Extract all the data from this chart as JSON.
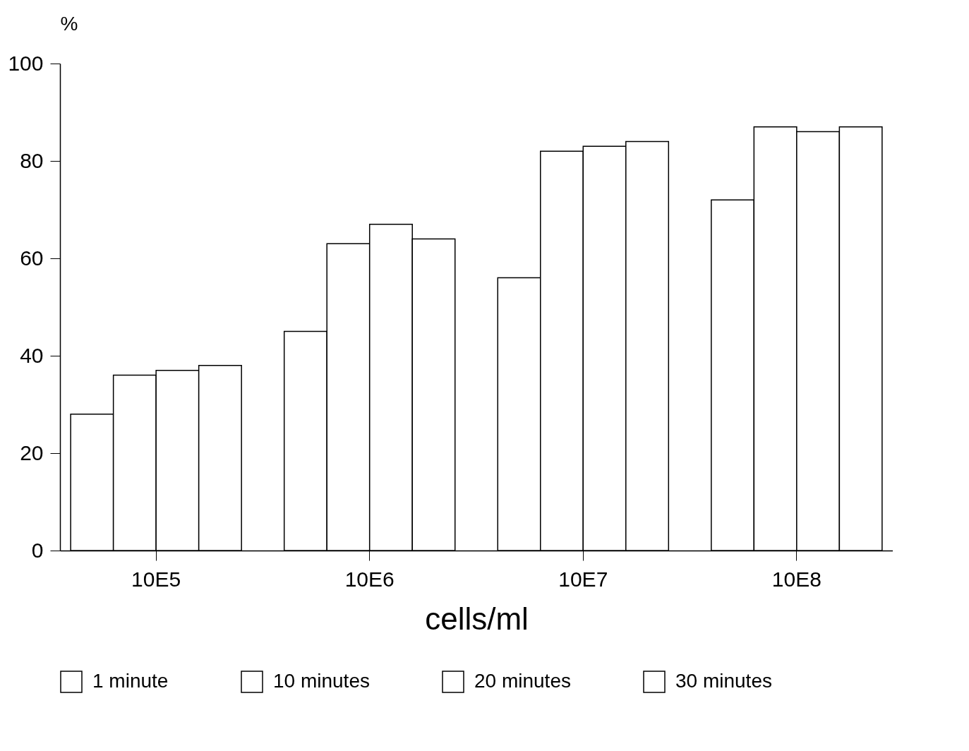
{
  "chart_data": {
    "type": "bar",
    "xlabel": "cells/ml",
    "ylabel": "%",
    "categories": [
      "10E5",
      "10E6",
      "10E7",
      "10E8"
    ],
    "series": [
      {
        "name": "1 minute",
        "color": "#ffffff",
        "values": [
          28,
          45,
          56,
          72
        ]
      },
      {
        "name": "10 minutes",
        "color": "#ffffff",
        "values": [
          36,
          63,
          82,
          87
        ]
      },
      {
        "name": "20 minutes",
        "color": "#ffffff",
        "values": [
          37,
          67,
          83,
          86
        ]
      },
      {
        "name": "30 minutes",
        "color": "#ffffff",
        "values": [
          38,
          64,
          84,
          87
        ]
      }
    ],
    "ylim": [
      0,
      100
    ],
    "yticks": [
      0,
      20,
      40,
      60,
      80,
      100
    ],
    "grid": false,
    "legend": "bottom"
  }
}
